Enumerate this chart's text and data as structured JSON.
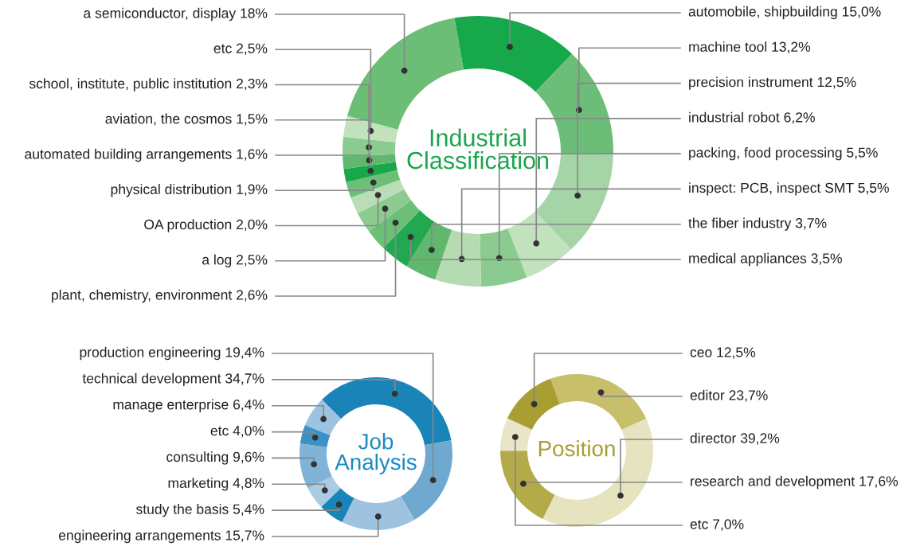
{
  "chart_data": [
    {
      "type": "donut",
      "title": "Industrial\nClassification",
      "categories": [
        "automobile, shipbuilding",
        "machine tool",
        "precision instrument",
        "industrial robot",
        "packing, food processing",
        "inspect: PCB, inspect SMT",
        "the fiber industry",
        "medical appliances",
        "plant, chemistry, environment",
        "a log",
        "OA production",
        "physical distribution",
        "automated building arrangements",
        "aviation, the cosmos",
        "school, institute, public institution",
        "etc",
        "a semiconductor, display"
      ],
      "values": [
        15.0,
        13.2,
        12.5,
        6.2,
        5.5,
        5.5,
        3.7,
        3.5,
        2.6,
        2.5,
        2.0,
        1.9,
        1.6,
        1.5,
        2.3,
        2.5,
        18
      ],
      "value_labels": [
        "15,0%",
        "13,2%",
        "12,5%",
        "6,2%",
        "5,5%",
        "5,5%",
        "3,7%",
        "3,5%",
        "2,6%",
        "2,5%",
        "2,0%",
        "1,9%",
        "1,6%",
        "1,5%",
        "2,3%",
        "2,5%",
        "18%"
      ],
      "colors": [
        "#16a84a",
        "#6bbd78",
        "#a5d5a6",
        "#c2e2be",
        "#8ccb90",
        "#b5dbb2",
        "#5fb86d",
        "#22a850",
        "#6cbf77",
        "#8ccb90",
        "#b9ddb6",
        "#6cbf77",
        "#16a84a",
        "#5fb86d",
        "#8ccb90",
        "#c2e2be",
        "#6cbd76"
      ]
    },
    {
      "type": "donut",
      "title": "Job\nAnalysis",
      "categories": [
        "technical development",
        "production engineering",
        "engineering arrangements",
        "study the basis",
        "marketing",
        "consulting",
        "etc",
        "manage enterprise"
      ],
      "values": [
        34.7,
        19.4,
        15.7,
        5.4,
        4.8,
        9.6,
        4.0,
        6.4
      ],
      "value_labels": [
        "34,7%",
        "19,4%",
        "15,7%",
        "5,4%",
        "4,8%",
        "9,6%",
        "4,0%",
        "6,4%"
      ],
      "colors": [
        "#1a84b8",
        "#6fa9d0",
        "#9dc3e0",
        "#1a84b8",
        "#a9cbe4",
        "#7fb3d8",
        "#3c92c4",
        "#9dc3e0"
      ]
    },
    {
      "type": "donut",
      "title": "Position",
      "categories": [
        "editor",
        "director",
        "research and development",
        "etc",
        "ceo"
      ],
      "values": [
        23.7,
        39.2,
        17.6,
        7.0,
        12.5
      ],
      "value_labels": [
        "23,7%",
        "39,2%",
        "17,6%",
        "7,0%",
        "12,5%"
      ],
      "colors": [
        "#c8bf6a",
        "#e6e3bf",
        "#b3aa4a",
        "#e9e6c8",
        "#a99e32"
      ]
    }
  ]
}
